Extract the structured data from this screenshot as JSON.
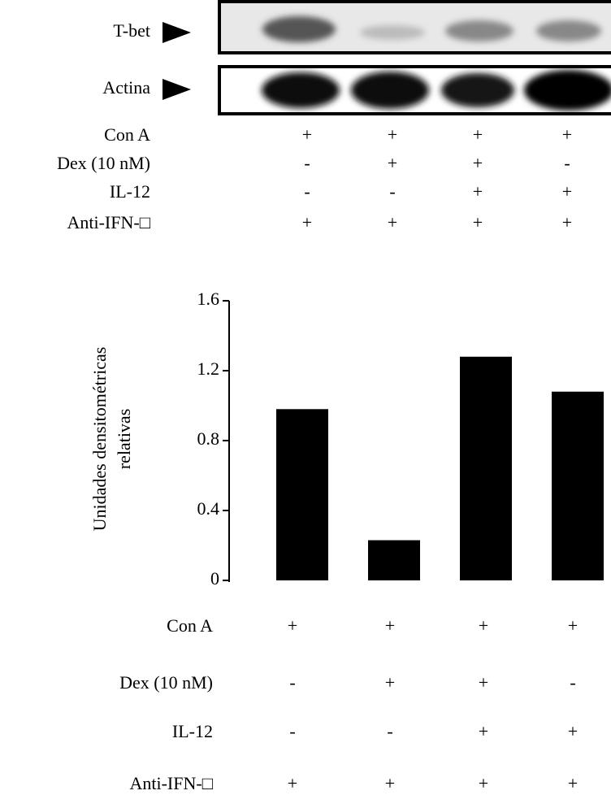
{
  "blot": {
    "labels": [
      "T-bet",
      "Actina"
    ],
    "conditions": {
      "labels": [
        "Con A",
        "Dex (10 nM)",
        "IL-12",
        "Anti-IFN-□"
      ],
      "rows": [
        [
          "+",
          "+",
          "+",
          "+"
        ],
        [
          "-",
          "+",
          "+",
          "-"
        ],
        [
          "-",
          "-",
          "+",
          "+"
        ],
        [
          "+",
          "+",
          "+",
          "+"
        ]
      ]
    }
  },
  "chart_data": {
    "type": "bar",
    "y_label": [
      "Unidades densitométricas",
      "relativas"
    ],
    "values": [
      0.98,
      0.23,
      1.28,
      1.08
    ],
    "color": "#000000",
    "ylim": [
      0,
      1.6
    ],
    "yticks": [
      0,
      0.4,
      0.8,
      1.2,
      1.6
    ],
    "conditions": {
      "labels": [
        "Con A",
        "Dex (10 nM)",
        "IL-12",
        "Anti-IFN-□"
      ],
      "rows": [
        [
          "+",
          "+",
          "+",
          "+"
        ],
        [
          "-",
          "+",
          "+",
          "-"
        ],
        [
          "-",
          "-",
          "+",
          "+"
        ],
        [
          "+",
          "+",
          "+",
          "+"
        ]
      ]
    }
  }
}
